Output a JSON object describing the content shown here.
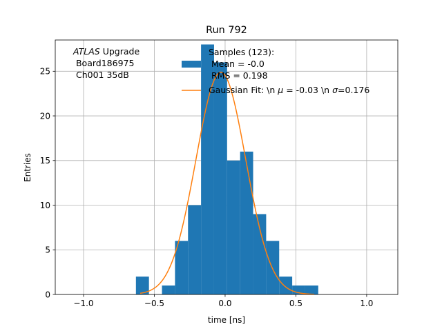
{
  "chart_data": {
    "type": "bar",
    "title": "Run 792",
    "xlabel": "time [ns]",
    "ylabel": "Entries",
    "xlim": [
      -1.2,
      1.22
    ],
    "ylim": [
      0,
      28.5
    ],
    "x_ticks": [
      -1.0,
      -0.5,
      0.0,
      0.5,
      1.0
    ],
    "x_tick_labels": [
      "−1.0",
      "−0.5",
      "0.0",
      "0.5",
      "1.0"
    ],
    "y_ticks": [
      0,
      5,
      10,
      15,
      20,
      25
    ],
    "y_tick_labels": [
      "0",
      "5",
      "10",
      "15",
      "20",
      "25"
    ],
    "grid": true,
    "legend_position": "top-right",
    "annotation": {
      "italic": "ATLAS",
      "line1_rest": " Upgrade",
      "line2": " Board186975",
      "line3": " Ch001 35dB"
    },
    "histogram": {
      "name": "Samples (123):\n Mean = -0.0\n RMS = 0.198",
      "legend_lines": [
        "Samples (123):",
        " Mean = -0.0",
        " RMS = 0.198"
      ],
      "color": "#1f77b4",
      "bin_width": 0.092,
      "bins": [
        {
          "x0": -0.63,
          "x1": -0.538,
          "count": 2
        },
        {
          "x0": -0.446,
          "x1": -0.354,
          "count": 1
        },
        {
          "x0": -0.354,
          "x1": -0.262,
          "count": 6
        },
        {
          "x0": -0.262,
          "x1": -0.17,
          "count": 10
        },
        {
          "x0": -0.17,
          "x1": -0.078,
          "count": 28
        },
        {
          "x0": -0.078,
          "x1": 0.014,
          "count": 26
        },
        {
          "x0": 0.014,
          "x1": 0.106,
          "count": 15
        },
        {
          "x0": 0.106,
          "x1": 0.198,
          "count": 16
        },
        {
          "x0": 0.198,
          "x1": 0.29,
          "count": 9
        },
        {
          "x0": 0.29,
          "x1": 0.382,
          "count": 6
        },
        {
          "x0": 0.382,
          "x1": 0.474,
          "count": 2
        },
        {
          "x0": 0.474,
          "x1": 0.566,
          "count": 1
        },
        {
          "x0": 0.566,
          "x1": 0.658,
          "count": 1
        }
      ]
    },
    "fit": {
      "name": "Gaussian Fit: \\n μ = -0.03 \\n σ=0.176",
      "color": "#ff7f0e",
      "amplitude": 24.9,
      "mu": -0.03,
      "sigma": 0.176,
      "x_range": [
        -0.6,
        0.63
      ]
    },
    "legend_fit_prefix": "Gaussian Fit: \\n ",
    "legend_fit_mu": "μ",
    "legend_fit_mid": " = -0.03 \\n ",
    "legend_fit_sigma": "σ",
    "legend_fit_end": "=0.176"
  }
}
